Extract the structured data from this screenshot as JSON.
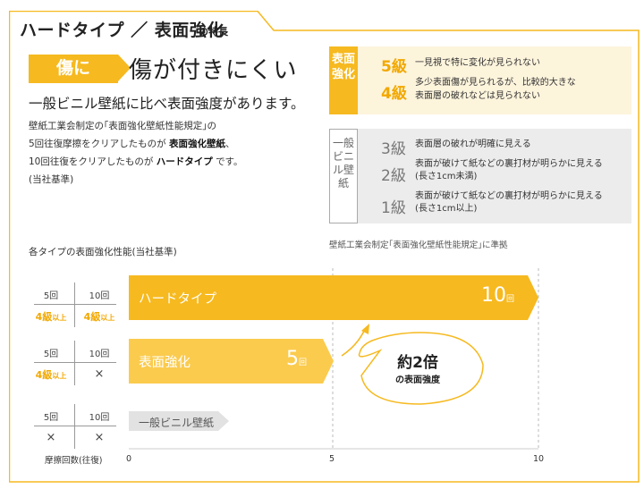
{
  "header": {
    "title": "ハードタイプ ／ 表面強化",
    "suffix": "の特長"
  },
  "headline": {
    "tag": "傷に",
    "text": "傷が付きにくい"
  },
  "intro": {
    "compare": "一般ビニル壁紙に比べ表面強度があります。",
    "line1": "壁紙工業会制定の｢表面強化壁紙性能規定｣の",
    "line2_pre": "5回往復摩擦をクリアしたものが",
    "line2_bold": "表面強化壁紙",
    "line2_post": "、",
    "line3_pre": "10回往復をクリアしたものが",
    "line3_bold": "ハードタイプ",
    "line3_post": "です。",
    "line4": "(当社基準)"
  },
  "panels": {
    "hyomen_label": "表面強化",
    "ippan_label": "一般ビニル壁紙",
    "grades_hyomen": [
      {
        "grade": "5級",
        "desc1": "一見視で特に変化が見られない",
        "desc2": ""
      },
      {
        "grade": "4級",
        "desc1": "多少表面傷が見られるが、比較的大きな",
        "desc2": "表面層の破れなどは見られない"
      }
    ],
    "grades_ippan": [
      {
        "grade": "3級",
        "desc1": "表面層の破れが明確に見える",
        "desc2": ""
      },
      {
        "grade": "2級",
        "desc1": "表面が破けて紙などの裏打材が明らかに見える",
        "desc2": "(長さ1cm未満)"
      },
      {
        "grade": "1級",
        "desc1": "表面が破けて紙などの裏打材が明らかに見える",
        "desc2": "(長さ1cm以上)"
      }
    ],
    "note": "壁紙工業会制定｢表面強化壁紙性能規定｣に準拠"
  },
  "grade_tables": [
    {
      "h1": "5回",
      "h2": "10回",
      "v1": "4級",
      "v1s": "以上",
      "v2": "4級",
      "v2s": "以上",
      "x1": false,
      "x2": false
    },
    {
      "h1": "5回",
      "h2": "10回",
      "v1": "4級",
      "v1s": "以上",
      "v2": "×",
      "v2s": "",
      "x1": false,
      "x2": true
    },
    {
      "h1": "5回",
      "h2": "10回",
      "v1": "×",
      "v1s": "",
      "v2": "×",
      "v2s": "",
      "x1": true,
      "x2": true
    }
  ],
  "chart_data": {
    "type": "bar",
    "title": "各タイプの表面強化性能(当社基準)",
    "categories": [
      "ハードタイプ",
      "表面強化",
      "一般ビニル壁紙"
    ],
    "values": [
      10,
      5,
      0
    ],
    "value_labels": [
      "10",
      "5",
      ""
    ],
    "value_unit": "回",
    "xlabel": "摩擦回数(往復)",
    "xlim": [
      0,
      10
    ],
    "xticks": [
      "0",
      "5",
      "10"
    ],
    "annotation": {
      "big": "約2倍",
      "small": "の表面強度"
    },
    "colors": {
      "bar": "#f6b91f",
      "bar_light": "#fbcb4e",
      "gray": "#e2e2e2"
    }
  }
}
